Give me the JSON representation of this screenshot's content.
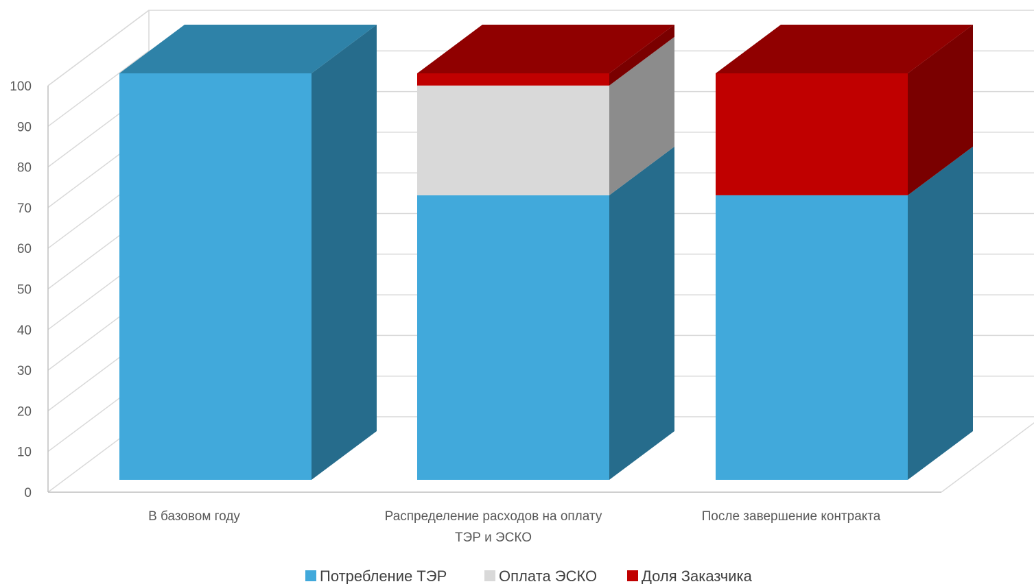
{
  "chart_data": {
    "type": "bar",
    "stacked": true,
    "three_d": true,
    "categories": [
      [
        "В базовом году"
      ],
      [
        "Распределение расходов на оплату",
        "ТЭР и ЭСКО"
      ],
      [
        "После завершение контракта"
      ]
    ],
    "series": [
      {
        "name": "Потребление ТЭР",
        "values": [
          100,
          70,
          70
        ],
        "color": "#41A9DB",
        "side_color": "#266C8C",
        "top_color": "#2E82A8"
      },
      {
        "name": "Оплата ЭСКО",
        "values": [
          0,
          27,
          0
        ],
        "color": "#D9D9D9",
        "side_color": "#8C8C8C",
        "top_color": "#A6A6A6"
      },
      {
        "name": "Доля Заказчика",
        "values": [
          0,
          3,
          30
        ],
        "color": "#C00000",
        "side_color": "#7A0000",
        "top_color": "#900000"
      }
    ],
    "ylim": [
      0,
      100
    ],
    "yticks": [
      "0",
      "10",
      "20",
      "30",
      "40",
      "50",
      "60",
      "70",
      "80",
      "90",
      "100"
    ],
    "grid": true,
    "legend_position": "bottom"
  }
}
